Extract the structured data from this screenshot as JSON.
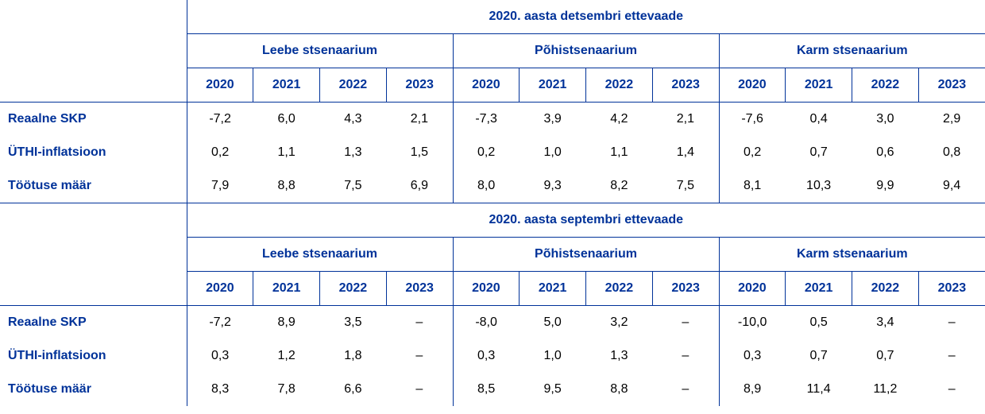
{
  "colors": {
    "accent": "#003299",
    "text": "#000000"
  },
  "years": [
    "2020",
    "2021",
    "2022",
    "2023"
  ],
  "scenarios": [
    "Leebe stsenaarium",
    "Põhistsenaarium",
    "Karm stsenaarium"
  ],
  "blocks": [
    {
      "title": "2020. aasta detsembri ettevaade",
      "rows": [
        {
          "label": "Reaalne SKP",
          "values": [
            "-7,2",
            "6,0",
            "4,3",
            "2,1",
            "-7,3",
            "3,9",
            "4,2",
            "2,1",
            "-7,6",
            "0,4",
            "3,0",
            "2,9"
          ]
        },
        {
          "label": "ÜTHI-inflatsioon",
          "values": [
            "0,2",
            "1,1",
            "1,3",
            "1,5",
            "0,2",
            "1,0",
            "1,1",
            "1,4",
            "0,2",
            "0,7",
            "0,6",
            "0,8"
          ]
        },
        {
          "label": "Töötuse määr",
          "values": [
            "7,9",
            "8,8",
            "7,5",
            "6,9",
            "8,0",
            "9,3",
            "8,2",
            "7,5",
            "8,1",
            "10,3",
            "9,9",
            "9,4"
          ]
        }
      ]
    },
    {
      "title": "2020. aasta septembri ettevaade",
      "rows": [
        {
          "label": "Reaalne SKP",
          "values": [
            "-7,2",
            "8,9",
            "3,5",
            "–",
            "-8,0",
            "5,0",
            "3,2",
            "–",
            "-10,0",
            "0,5",
            "3,4",
            "–"
          ]
        },
        {
          "label": "ÜTHI-inflatsioon",
          "values": [
            "0,3",
            "1,2",
            "1,8",
            "–",
            "0,3",
            "1,0",
            "1,3",
            "–",
            "0,3",
            "0,7",
            "0,7",
            "–"
          ]
        },
        {
          "label": "Töötuse määr",
          "values": [
            "8,3",
            "7,8",
            "6,6",
            "–",
            "8,5",
            "9,5",
            "8,8",
            "–",
            "8,9",
            "11,4",
            "11,2",
            "–"
          ]
        }
      ]
    }
  ]
}
